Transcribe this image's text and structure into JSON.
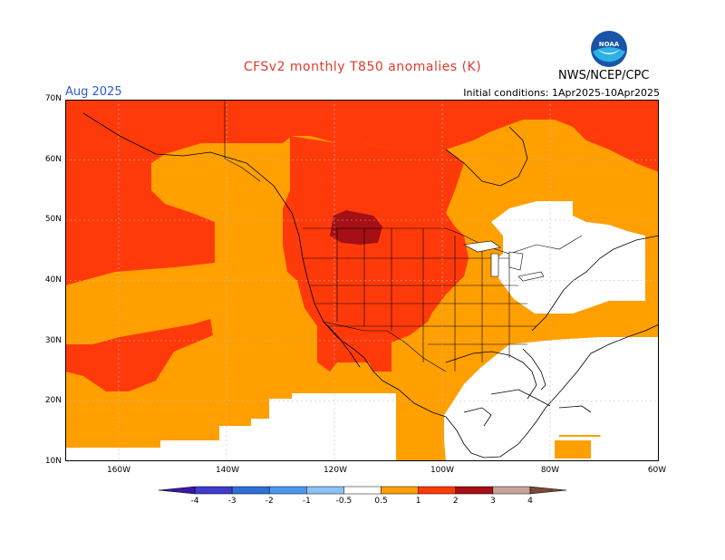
{
  "header": {
    "title": "CFSv2 monthly T850 anomalies (K)",
    "agency": "NWS/NCEP/CPC",
    "valid_month": "Aug 2025",
    "initial_conditions": "Initial conditions: 1Apr2025-10Apr2025"
  },
  "colors": {
    "title": "#e0392b",
    "valid": "#2a5bd7",
    "anom_0_5_1": "#ff9f00",
    "anom_1_2": "#ff3a0a",
    "anom_2_3": "#a50f15",
    "land_border": "#000000"
  },
  "axes": {
    "lat_labels": [
      "70N",
      "60N",
      "50N",
      "40N",
      "30N",
      "20N",
      "10N"
    ],
    "lon_labels": [
      "160W",
      "140W",
      "120W",
      "100W",
      "80W",
      "60W"
    ]
  },
  "colorbar": {
    "ticks": [
      "-4",
      "-3",
      "-2",
      "-1",
      "-0.5",
      "0.5",
      "1",
      "2",
      "3",
      "4"
    ],
    "bins": [
      {
        "color": "#3a17a8"
      },
      {
        "color": "#3c3ccf"
      },
      {
        "color": "#2f6fd9"
      },
      {
        "color": "#4a98ee"
      },
      {
        "color": "#8cc3f5"
      },
      {
        "color": "#ffffff"
      },
      {
        "color": "#ff9f00"
      },
      {
        "color": "#ff3a0a"
      },
      {
        "color": "#a50f15"
      },
      {
        "color": "#c8a39a"
      },
      {
        "color": "#7a4a35"
      }
    ]
  },
  "icons": {
    "logo": "noaa-logo-icon"
  }
}
